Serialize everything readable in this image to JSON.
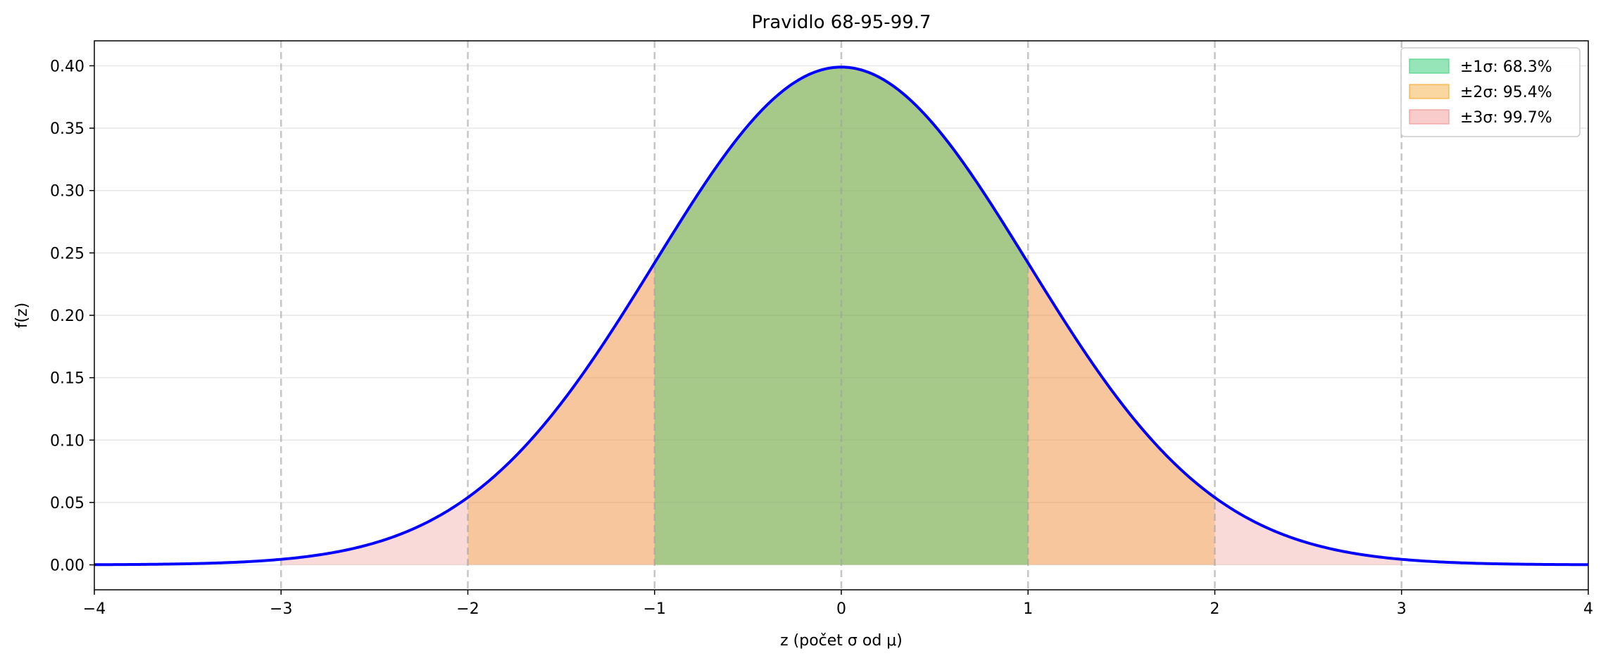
{
  "chart_data": {
    "type": "area",
    "title": "Pravidlo 68-95-99.7",
    "xlabel": "z (počet σ od μ)",
    "ylabel": "f(z)",
    "xlim": [
      -4,
      4
    ],
    "ylim": [
      -0.02,
      0.42
    ],
    "x_ticks": [
      -4,
      -3,
      -2,
      -1,
      0,
      1,
      2,
      3,
      4
    ],
    "x_tick_labels": [
      "−4",
      "−3",
      "−2",
      "−1",
      "0",
      "1",
      "2",
      "3",
      "4"
    ],
    "y_ticks": [
      0.0,
      0.05,
      0.1,
      0.15,
      0.2,
      0.25,
      0.3,
      0.35,
      0.4
    ],
    "y_tick_labels": [
      "0.00",
      "0.05",
      "0.10",
      "0.15",
      "0.20",
      "0.25",
      "0.30",
      "0.35",
      "0.40"
    ],
    "curve": {
      "name": "standard normal pdf",
      "mu": 0,
      "sigma": 1,
      "color": "#0000ff"
    },
    "vertical_dashed_lines": [
      -3,
      -2,
      -1,
      0,
      1,
      2,
      3
    ],
    "bands": [
      {
        "label": "±3σ: 99.7%",
        "from": -3,
        "to": 3,
        "color": "#f08080",
        "opacity": 0.3
      },
      {
        "label": "±2σ: 95.4%",
        "from": -2,
        "to": 2,
        "color": "#f39c12",
        "opacity": 0.3
      },
      {
        "label": "±1σ: 68.3%",
        "from": -1,
        "to": 1,
        "color": "#2ecc71",
        "opacity": 0.4
      }
    ],
    "legend": {
      "placement": "top-right",
      "entries": [
        "±1σ: 68.3%",
        "±2σ: 95.4%",
        "±3σ: 99.7%"
      ]
    },
    "grid": {
      "y": true,
      "x": false
    }
  }
}
